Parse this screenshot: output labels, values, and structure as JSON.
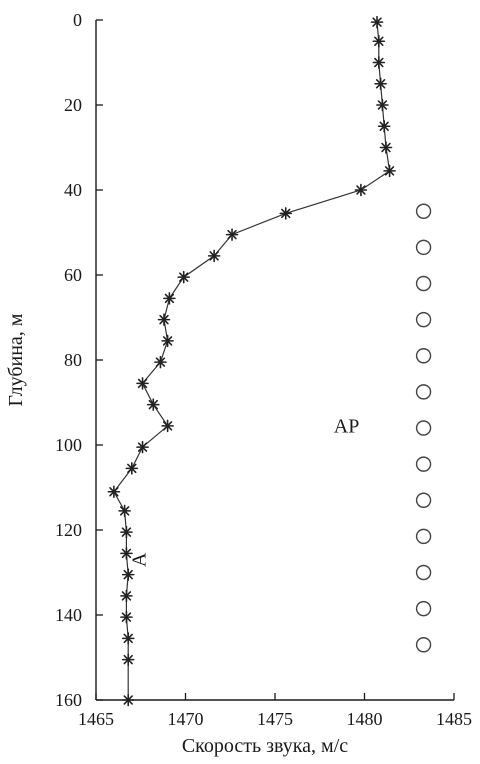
{
  "chart_data": {
    "type": "scatter",
    "xlabel": "Скорость звука, м/с",
    "ylabel": "Глубина, м",
    "xlim": [
      1465,
      1485
    ],
    "ylim": [
      0,
      160
    ],
    "y_inverted": true,
    "xticks": [
      1465,
      1470,
      1475,
      1480,
      1485
    ],
    "yticks": [
      0,
      20,
      40,
      60,
      80,
      100,
      120,
      140,
      160
    ],
    "grid": false,
    "series": [
      {
        "marker": "asterisk",
        "connected": true,
        "color": "#333333",
        "points": [
          [
            1480.7,
            0.5
          ],
          [
            1480.8,
            5
          ],
          [
            1480.8,
            10
          ],
          [
            1480.9,
            15
          ],
          [
            1481.0,
            20
          ],
          [
            1481.1,
            25
          ],
          [
            1481.2,
            30
          ],
          [
            1481.4,
            35.5
          ],
          [
            1479.8,
            40
          ],
          [
            1475.6,
            45.5
          ],
          [
            1472.6,
            50.5
          ],
          [
            1471.6,
            55.5
          ],
          [
            1469.9,
            60.5
          ],
          [
            1469.1,
            65.5
          ],
          [
            1468.8,
            70.5
          ],
          [
            1469.0,
            75.5
          ],
          [
            1468.6,
            80.5
          ],
          [
            1467.6,
            85.5
          ],
          [
            1468.2,
            90.5
          ],
          [
            1469.0,
            95.5
          ],
          [
            1467.6,
            100.5
          ],
          [
            1467.0,
            105.5
          ],
          [
            1466.0,
            111
          ],
          [
            1466.6,
            115.5
          ],
          [
            1466.7,
            120.5
          ],
          [
            1466.7,
            125.5
          ],
          [
            1466.8,
            130.5
          ],
          [
            1466.7,
            135.5
          ],
          [
            1466.7,
            140.5
          ],
          [
            1466.8,
            145.5
          ],
          [
            1466.8,
            150.5
          ],
          [
            1466.8,
            160
          ]
        ]
      },
      {
        "marker": "circle",
        "connected": false,
        "color": "#444444",
        "points": [
          [
            1483.3,
            45
          ],
          [
            1483.3,
            53.5
          ],
          [
            1483.3,
            62
          ],
          [
            1483.3,
            70.5
          ],
          [
            1483.3,
            79
          ],
          [
            1483.3,
            87.5
          ],
          [
            1483.3,
            96
          ],
          [
            1483.3,
            104.5
          ],
          [
            1483.3,
            113
          ],
          [
            1483.3,
            121.5
          ],
          [
            1483.3,
            130
          ],
          [
            1483.3,
            138.5
          ],
          [
            1483.3,
            147
          ]
        ]
      }
    ],
    "annotations": [
      {
        "text": "АР",
        "x": 1479.0,
        "y": 96
      },
      {
        "text": "А",
        "x": 1467.5,
        "y": 127,
        "rotate": -90
      }
    ]
  }
}
